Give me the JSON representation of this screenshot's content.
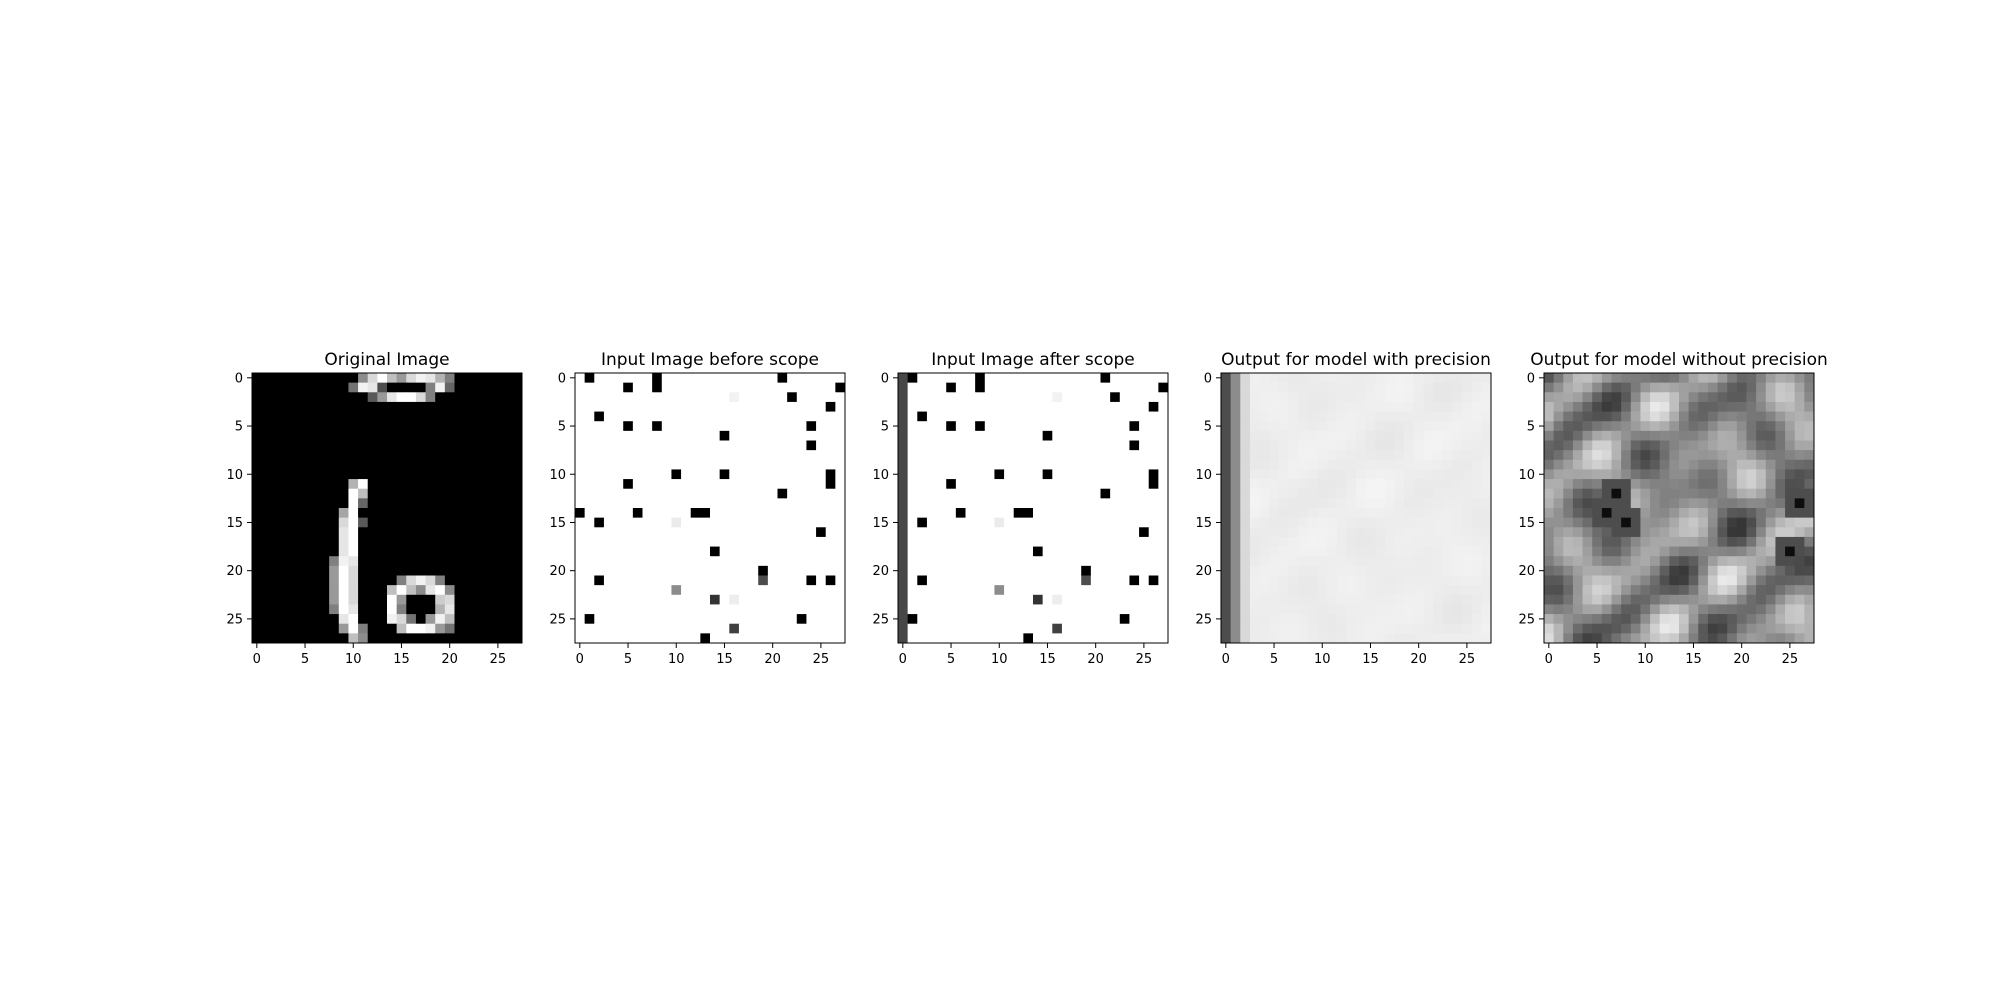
{
  "chart_data": [
    {
      "type": "heatmap",
      "title": "Original Image",
      "grid_size": [
        28,
        28
      ],
      "colormap": "gray",
      "xlim": [
        -0.5,
        27.5
      ],
      "ylim": [
        27.5,
        -0.5
      ],
      "xticks": [
        0,
        5,
        10,
        15,
        20,
        25
      ],
      "yticks": [
        0,
        5,
        10,
        15,
        20,
        25
      ],
      "background": 0,
      "pixels": [
        [
          0,
          11,
          0.55
        ],
        [
          0,
          12,
          0.85
        ],
        [
          0,
          13,
          1.0
        ],
        [
          0,
          14,
          0.75
        ],
        [
          0,
          15,
          0.6
        ],
        [
          0,
          16,
          0.85
        ],
        [
          0,
          17,
          0.95
        ],
        [
          0,
          18,
          0.9
        ],
        [
          0,
          19,
          0.7
        ],
        [
          0,
          20,
          0.5
        ],
        [
          1,
          10,
          0.45
        ],
        [
          1,
          11,
          0.95
        ],
        [
          1,
          12,
          0.9
        ],
        [
          1,
          13,
          0.3
        ],
        [
          1,
          18,
          0.5
        ],
        [
          1,
          19,
          0.95
        ],
        [
          1,
          20,
          0.4
        ],
        [
          2,
          12,
          0.35
        ],
        [
          2,
          13,
          0.6
        ],
        [
          2,
          14,
          0.9
        ],
        [
          2,
          15,
          1.0
        ],
        [
          2,
          16,
          1.0
        ],
        [
          2,
          17,
          0.85
        ],
        [
          2,
          18,
          0.5
        ],
        [
          11,
          10,
          0.7
        ],
        [
          11,
          11,
          1.0
        ],
        [
          12,
          10,
          1.0
        ],
        [
          12,
          11,
          0.75
        ],
        [
          13,
          10,
          1.0
        ],
        [
          13,
          11,
          0.4
        ],
        [
          14,
          9,
          0.65
        ],
        [
          14,
          10,
          1.0
        ],
        [
          15,
          9,
          0.85
        ],
        [
          15,
          10,
          1.0
        ],
        [
          15,
          11,
          0.35
        ],
        [
          16,
          9,
          0.9
        ],
        [
          16,
          10,
          1.0
        ],
        [
          17,
          9,
          0.9
        ],
        [
          17,
          10,
          1.0
        ],
        [
          18,
          9,
          0.9
        ],
        [
          18,
          10,
          1.0
        ],
        [
          19,
          8,
          0.5
        ],
        [
          19,
          9,
          0.95
        ],
        [
          19,
          10,
          0.9
        ],
        [
          20,
          8,
          0.6
        ],
        [
          20,
          9,
          1.0
        ],
        [
          20,
          10,
          0.85
        ],
        [
          21,
          8,
          0.6
        ],
        [
          21,
          9,
          1.0
        ],
        [
          21,
          10,
          0.85
        ],
        [
          21,
          15,
          0.5
        ],
        [
          21,
          16,
          0.85
        ],
        [
          21,
          17,
          0.95
        ],
        [
          21,
          18,
          0.85
        ],
        [
          21,
          19,
          0.5
        ],
        [
          22,
          8,
          0.6
        ],
        [
          22,
          9,
          1.0
        ],
        [
          22,
          10,
          0.85
        ],
        [
          22,
          14,
          0.75
        ],
        [
          22,
          15,
          1.0
        ],
        [
          22,
          16,
          0.75
        ],
        [
          22,
          17,
          0.55
        ],
        [
          22,
          18,
          0.9
        ],
        [
          22,
          19,
          1.0
        ],
        [
          22,
          20,
          0.55
        ],
        [
          23,
          8,
          0.6
        ],
        [
          23,
          9,
          1.0
        ],
        [
          23,
          10,
          0.85
        ],
        [
          23,
          14,
          1.0
        ],
        [
          23,
          15,
          0.6
        ],
        [
          23,
          19,
          0.8
        ],
        [
          23,
          20,
          0.85
        ],
        [
          24,
          8,
          0.5
        ],
        [
          24,
          9,
          1.0
        ],
        [
          24,
          10,
          0.9
        ],
        [
          24,
          14,
          1.0
        ],
        [
          24,
          15,
          0.5
        ],
        [
          24,
          19,
          0.7
        ],
        [
          24,
          20,
          0.9
        ],
        [
          25,
          9,
          0.9
        ],
        [
          25,
          10,
          1.0
        ],
        [
          25,
          14,
          0.95
        ],
        [
          25,
          15,
          0.85
        ],
        [
          25,
          16,
          0.45
        ],
        [
          25,
          18,
          0.6
        ],
        [
          25,
          19,
          0.95
        ],
        [
          25,
          20,
          0.75
        ],
        [
          26,
          9,
          0.6
        ],
        [
          26,
          10,
          1.0
        ],
        [
          26,
          11,
          0.5
        ],
        [
          26,
          15,
          0.75
        ],
        [
          26,
          16,
          1.0
        ],
        [
          26,
          17,
          1.0
        ],
        [
          26,
          18,
          0.95
        ],
        [
          26,
          19,
          0.6
        ],
        [
          26,
          20,
          0.45
        ],
        [
          27,
          10,
          0.75
        ],
        [
          27,
          11,
          0.55
        ]
      ]
    },
    {
      "type": "heatmap",
      "title": "Input Image before scope",
      "grid_size": [
        28,
        28
      ],
      "colormap": "gray",
      "xlim": [
        -0.5,
        27.5
      ],
      "ylim": [
        27.5,
        -0.5
      ],
      "xticks": [
        0,
        5,
        10,
        15,
        20,
        25
      ],
      "yticks": [
        0,
        5,
        10,
        15,
        20,
        25
      ],
      "background": 1,
      "pixels": [
        [
          0,
          1,
          0
        ],
        [
          0,
          8,
          0
        ],
        [
          0,
          21,
          0
        ],
        [
          1,
          5,
          0
        ],
        [
          1,
          8,
          0
        ],
        [
          1,
          27,
          0
        ],
        [
          2,
          16,
          0.95
        ],
        [
          2,
          22,
          0
        ],
        [
          3,
          26,
          0
        ],
        [
          4,
          2,
          0
        ],
        [
          5,
          5,
          0
        ],
        [
          5,
          8,
          0
        ],
        [
          5,
          24,
          0
        ],
        [
          6,
          15,
          0
        ],
        [
          7,
          24,
          0
        ],
        [
          10,
          10,
          0
        ],
        [
          10,
          15,
          0
        ],
        [
          10,
          26,
          0
        ],
        [
          11,
          5,
          0
        ],
        [
          11,
          26,
          0
        ],
        [
          12,
          21,
          0
        ],
        [
          14,
          0,
          0
        ],
        [
          14,
          6,
          0
        ],
        [
          14,
          12,
          0
        ],
        [
          14,
          13,
          0
        ],
        [
          15,
          2,
          0
        ],
        [
          15,
          10,
          0.92
        ],
        [
          16,
          25,
          0
        ],
        [
          18,
          14,
          0
        ],
        [
          20,
          19,
          0
        ],
        [
          21,
          2,
          0
        ],
        [
          21,
          19,
          0.3
        ],
        [
          21,
          24,
          0
        ],
        [
          21,
          26,
          0
        ],
        [
          22,
          10,
          0.55
        ],
        [
          23,
          14,
          0.2
        ],
        [
          23,
          16,
          0.93
        ],
        [
          25,
          1,
          0
        ],
        [
          25,
          23,
          0
        ],
        [
          26,
          16,
          0.25
        ],
        [
          27,
          13,
          0
        ]
      ]
    },
    {
      "type": "heatmap",
      "title": "Input Image after scope",
      "grid_size": [
        28,
        28
      ],
      "colormap": "gray",
      "xlim": [
        -0.5,
        27.5
      ],
      "ylim": [
        27.5,
        -0.5
      ],
      "xticks": [
        0,
        5,
        10,
        15,
        20,
        25
      ],
      "yticks": [
        0,
        5,
        10,
        15,
        20,
        25
      ],
      "background": 1,
      "left_column_value": 0.28,
      "pixels": [
        [
          0,
          1,
          0
        ],
        [
          0,
          8,
          0
        ],
        [
          0,
          21,
          0
        ],
        [
          1,
          5,
          0
        ],
        [
          1,
          8,
          0
        ],
        [
          1,
          27,
          0
        ],
        [
          2,
          16,
          0.95
        ],
        [
          2,
          22,
          0
        ],
        [
          3,
          26,
          0
        ],
        [
          4,
          2,
          0
        ],
        [
          5,
          5,
          0
        ],
        [
          5,
          8,
          0
        ],
        [
          5,
          24,
          0
        ],
        [
          6,
          15,
          0
        ],
        [
          7,
          24,
          0
        ],
        [
          10,
          10,
          0
        ],
        [
          10,
          15,
          0
        ],
        [
          10,
          26,
          0
        ],
        [
          11,
          5,
          0
        ],
        [
          11,
          26,
          0
        ],
        [
          12,
          21,
          0
        ],
        [
          14,
          6,
          0
        ],
        [
          14,
          12,
          0
        ],
        [
          14,
          13,
          0
        ],
        [
          15,
          2,
          0
        ],
        [
          15,
          10,
          0.92
        ],
        [
          16,
          25,
          0
        ],
        [
          18,
          14,
          0
        ],
        [
          20,
          19,
          0
        ],
        [
          21,
          2,
          0
        ],
        [
          21,
          19,
          0.3
        ],
        [
          21,
          24,
          0
        ],
        [
          21,
          26,
          0
        ],
        [
          22,
          10,
          0.55
        ],
        [
          23,
          14,
          0.2
        ],
        [
          23,
          16,
          0.93
        ],
        [
          25,
          1,
          0
        ],
        [
          25,
          23,
          0
        ],
        [
          26,
          16,
          0.25
        ],
        [
          27,
          13,
          0
        ]
      ]
    },
    {
      "type": "heatmap",
      "title": "Output for model with precision",
      "grid_size": [
        28,
        28
      ],
      "colormap": "gray",
      "xlim": [
        -0.5,
        27.5
      ],
      "ylim": [
        27.5,
        -0.5
      ],
      "xticks": [
        0,
        5,
        10,
        15,
        20,
        25
      ],
      "yticks": [
        0,
        5,
        10,
        15,
        20,
        25
      ],
      "background": 0.93,
      "column_profile": [
        0.3,
        0.55,
        0.85
      ],
      "pattern_amplitude": 0.05
    },
    {
      "type": "heatmap",
      "title": "Output for model without precision",
      "grid_size": [
        28,
        28
      ],
      "colormap": "gray",
      "xlim": [
        -0.5,
        27.5
      ],
      "ylim": [
        27.5,
        -0.5
      ],
      "xticks": [
        0,
        5,
        10,
        15,
        20,
        25
      ],
      "yticks": [
        0,
        5,
        10,
        15,
        20,
        25
      ],
      "background": 0.55,
      "pattern_amplitude": 0.4,
      "dark_spots": [
        [
          12,
          7
        ],
        [
          14,
          6
        ],
        [
          15,
          8
        ],
        [
          18,
          25
        ],
        [
          13,
          26
        ]
      ]
    }
  ]
}
